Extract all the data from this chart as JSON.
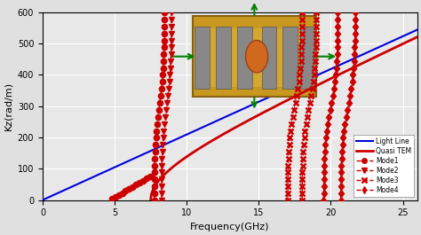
{
  "title": "",
  "xlabel": "Frequency(GHz)",
  "ylabel": "Kz(rad/m)",
  "xlim": [
    0,
    26
  ],
  "ylim": [
    0,
    600
  ],
  "xticks": [
    0,
    5,
    10,
    15,
    20,
    25
  ],
  "yticks": [
    0,
    100,
    200,
    300,
    400,
    500,
    600
  ],
  "light_line_color": "#0000dd",
  "quasi_tem_color": "#cc0000",
  "mode_color": "#cc0000",
  "background_color": "#e8e8e8",
  "grid_color": "#ffffff",
  "c_light": 300000000.0
}
